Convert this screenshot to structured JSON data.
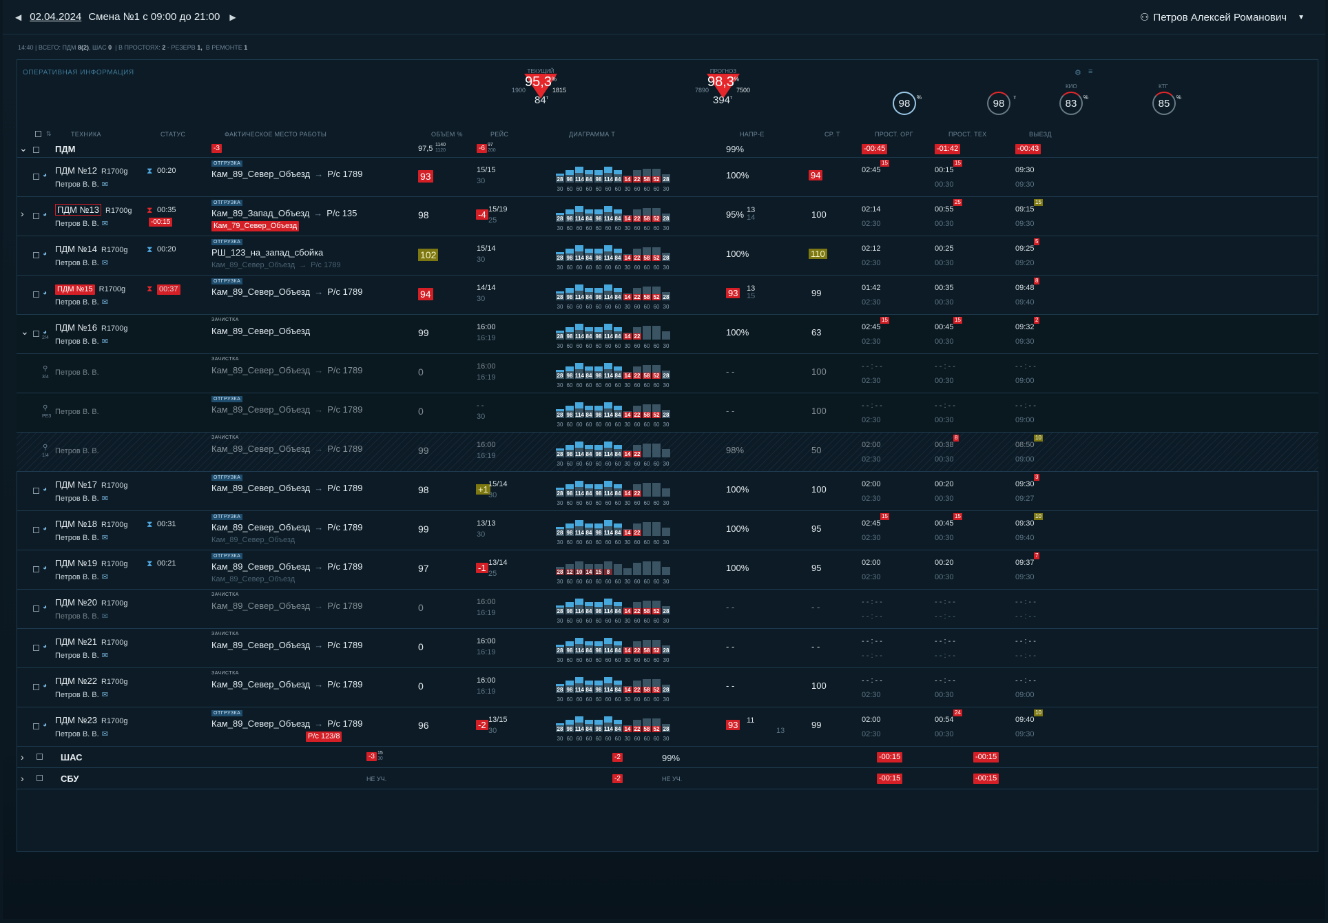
{
  "header": {
    "date": "02.04.2024",
    "shift": "Смена №1 с 09:00 до 21:00",
    "user": "Петров Алексей Романович"
  },
  "summary": {
    "time": "14:40",
    "total_label": "ВСЕГО: ПДМ",
    "pdm": "8(2)",
    "shas_label": ", ШАС",
    "shas": "0",
    "idle_label": "| В ПРОСТОЯХ:",
    "idle": "2",
    "reserve_label": "- РЕЗЕРВ",
    "reserve": "1,",
    "repair_label": "В РЕМОНТЕ",
    "repair": "1"
  },
  "panel": {
    "title": "ОПЕРАТИВНАЯ ИНФОРМАЦИЯ"
  },
  "kpis": {
    "current": {
      "label": "ТЕКУЩИЙ",
      "value": "95,3",
      "unit": "%",
      "left": "1900",
      "right": "1815",
      "bottom": "84",
      "bottom_unit": "т"
    },
    "forecast": {
      "label": "ПРОГНОЗ",
      "value": "98,3",
      "unit": "%",
      "left": "7890",
      "right": "7500",
      "bottom": "394",
      "bottom_unit": "т"
    },
    "circles": [
      {
        "value": "98",
        "unit": "%",
        "label": ""
      },
      {
        "value": "98",
        "unit": "т",
        "label": ""
      },
      {
        "value": "83",
        "unit": "%",
        "label": "КИО"
      },
      {
        "value": "85",
        "unit": "%",
        "label": "КТГ"
      }
    ]
  },
  "columns": [
    "ТЕХНИКА",
    "СТАТУС",
    "ФАКТИЧЕСКОЕ МЕСТО РАБОТЫ",
    "ОБЪЕМ %",
    "РЕЙС",
    "ДИАГРАММА Т",
    "НАПР-Е",
    "СР. Т",
    "ПРОСТ. ОРГ",
    "ПРОСТ. ТЕХ",
    "ВЫЕЗД"
  ],
  "group_pdm": {
    "name": "ПДМ",
    "place_badge": "-3",
    "volume": "97,5",
    "volume_top": "1140",
    "volume_bot": "1120",
    "trip_badge": "-6",
    "trip_top": "97",
    "trip_bot": "200",
    "napr": "99%",
    "prost_org": "-00:45",
    "prost_teh": "-01:42",
    "vyezd": "-00:43"
  },
  "rows": [
    {
      "name": "ПДМ №12",
      "model": "R1700g",
      "person": "Петров В. В.",
      "status_time": "00:20",
      "tag": "ОТГРУЗКА",
      "place": "Кам_89_Север_Объезд",
      "dest": "Р/с 1789",
      "volume": "93",
      "trip": "15/15",
      "trip2": "30",
      "napr": "100%",
      "srt": "94",
      "po": "02:45",
      "po2": "",
      "pt": "00:15",
      "pt2": "00:30",
      "vy": "09:30",
      "vy2": "09:30",
      "cpo": "15",
      "cpt": "15",
      "cvy": ""
    },
    {
      "name": "ПДМ №13",
      "model": "R1700g",
      "person": "Петров В. В.",
      "status_time": "00:35",
      "status_badge": "-00:15",
      "tag": "ОТГРУЗКА",
      "place": "Кам_89_Запад_Объезд",
      "dest": "Р/с 135",
      "place2": "Кам_79_Север_Объезд",
      "volume": "98",
      "trip_badge": "-4",
      "trip": "15/19",
      "trip2": "25",
      "napr": "95%",
      "napr_a": "13",
      "napr_b": "14",
      "srt": "100",
      "po": "02:14",
      "po2": "02:30",
      "pt": "00:55",
      "pt2": "00:30",
      "vy": "09:15",
      "vy2": "09:30",
      "cpt": "25",
      "cvy": "15"
    },
    {
      "name": "ПДМ №14",
      "model": "R1700g",
      "person": "Петров В. В.",
      "status_time": "00:20",
      "tag": "ОТГРУЗКА",
      "place": "РШ_123_на_запад_сбойка",
      "place_sub": "Кам_89_Север_Объезд",
      "dest_sub": "Р/с 1789",
      "volume": "102",
      "trip": "15/14",
      "trip2": "30",
      "napr": "100%",
      "srt": "110",
      "po": "02:12",
      "po2": "02:30",
      "pt": "00:25",
      "pt2": "00:30",
      "vy": "09:25",
      "vy2": "09:20",
      "cvy": "5"
    },
    {
      "name": "ПДМ №15",
      "model": "R1700g",
      "person": "Петров В. В.",
      "status_time": "00:37",
      "tag": "ОТГРУЗКА",
      "place": "Кам_89_Север_Объезд",
      "dest": "Р/с 1789",
      "volume": "94",
      "trip": "14/14",
      "trip2": "30",
      "napr": "93",
      "napr_a": "13",
      "napr_b": "15",
      "srt": "99",
      "po": "01:42",
      "po2": "02:30",
      "pt": "00:35",
      "pt2": "00:30",
      "vy": "09:48",
      "vy2": "09:40",
      "cvy": "8"
    },
    {
      "name": "ПДМ №16",
      "model": "R1700g",
      "person": "Петров В. В.",
      "tag": "ЗАЧИСТКА",
      "place": "Кам_89_Север_Объезд",
      "volume": "99",
      "trip": "16:00",
      "trip2": "16:19",
      "napr": "100%",
      "srt": "63",
      "po": "02:45",
      "po2": "02:30",
      "pt": "00:45",
      "pt2": "00:30",
      "vy": "09:32",
      "vy2": "09:30",
      "cpo": "15",
      "cpt": "15",
      "cvy": "2",
      "frac": "2/4"
    },
    {
      "person": "Петров В. В.",
      "tag": "ЗАЧИСТКА",
      "place": "Кам_89_Север_Объезд",
      "dest": "Р/с 1789",
      "volume": "0",
      "trip": "16:00",
      "trip2": "16:19",
      "napr": "- -",
      "srt": "100",
      "po": "- - : - -",
      "po2": "02:30",
      "pt": "- - : - -",
      "pt2": "00:30",
      "vy": "- - : - -",
      "vy2": "09:00",
      "frac": "3/4"
    },
    {
      "person": "Петров В. В.",
      "tag": "ОТГРУЗКА",
      "place": "Кам_89_Север_Объезд",
      "dest": "Р/с 1789",
      "volume": "0",
      "trip": "- -",
      "trip2": "30",
      "napr": "- -",
      "srt": "100",
      "po": "- - : - -",
      "po2": "02:30",
      "pt": "- - : - -",
      "pt2": "00:30",
      "vy": "- - : - -",
      "vy2": "09:00",
      "frac": "РЕЗ"
    },
    {
      "person": "Петров В. В.",
      "tag": "ЗАЧИСТКА",
      "place": "Кам_89_Север_Объезд",
      "dest": "Р/с 1789",
      "volume": "99",
      "trip": "16:00",
      "trip2": "16:19",
      "napr": "98%",
      "srt": "50",
      "po": "02:00",
      "po2": "02:30",
      "pt": "00:38",
      "pt2": "00:30",
      "vy": "08:50",
      "vy2": "09:00",
      "cpt": "8",
      "cvy": "10",
      "frac": "1/4"
    },
    {
      "name": "ПДМ №17",
      "model": "R1700g",
      "person": "Петров В. В.",
      "tag": "ОТГРУЗКА",
      "place": "Кам_89_Север_Объезд",
      "dest": "Р/с 1789",
      "volume": "98",
      "trip_badge": "+1",
      "trip": "15/14",
      "trip2": "30",
      "napr": "100%",
      "srt": "100",
      "po": "02:00",
      "po2": "02:30",
      "pt": "00:20",
      "pt2": "00:30",
      "vy": "09:30",
      "vy2": "09:27",
      "cvy": "3"
    },
    {
      "name": "ПДМ №18",
      "model": "R1700g",
      "person": "Петров В. В.",
      "status_time": "00:31",
      "tag": "ОТГРУЗКА",
      "place": "Кам_89_Север_Объезд",
      "dest": "Р/с 1789",
      "place_sub": "Кам_89_Север_Объезд",
      "volume": "99",
      "trip": "13/13",
      "trip2": "30",
      "napr": "100%",
      "srt": "95",
      "po": "02:45",
      "po2": "02:30",
      "pt": "00:45",
      "pt2": "00:30",
      "vy": "09:30",
      "vy2": "09:40",
      "cpo": "15",
      "cpt": "15",
      "cvy": "10"
    },
    {
      "name": "ПДМ №19",
      "model": "R1700g",
      "person": "Петров В. В.",
      "status_time": "00:21",
      "tag": "ОТГРУЗКА",
      "place": "Кам_89_Север_Объезд",
      "dest": "Р/с 1789",
      "place_sub": "Кам_89_Север_Объезд",
      "volume": "97",
      "trip_badge": "-1",
      "trip": "13/14",
      "trip2": "25",
      "napr": "100%",
      "srt": "95",
      "po": "02:00",
      "po2": "02:30",
      "pt": "00:20",
      "pt2": "00:30",
      "vy": "09:37",
      "vy2": "09:30",
      "cvy": "7"
    },
    {
      "name": "ПДМ №20",
      "model": "R1700g",
      "person": "Петров В. В.",
      "tag": "ЗАЧИСТКА",
      "place": "Кам_89_Север_Объезд",
      "dest": "Р/с 1789",
      "volume": "0",
      "trip": "16:00",
      "trip2": "16:19",
      "napr": "- -",
      "srt": "- -",
      "po": "- - : - -",
      "po2": "- - : - -",
      "pt": "- - : - -",
      "pt2": "- - : - -",
      "vy": "- - : - -",
      "vy2": "- - : - -"
    },
    {
      "name": "ПДМ №21",
      "model": "R1700g",
      "person": "Петров В. В.",
      "tag": "ЗАЧИСТКА",
      "place": "Кам_89_Север_Объезд",
      "dest": "Р/с 1789",
      "volume": "0",
      "trip": "16:00",
      "trip2": "16:19",
      "napr": "- -",
      "srt": "- -",
      "po": "- - : - -",
      "po2": "- - : - -",
      "pt": "- - : - -",
      "pt2": "- - : - -",
      "vy": "- - : - -",
      "vy2": "- - : - -"
    },
    {
      "name": "ПДМ №22",
      "model": "R1700g",
      "person": "Петров В. В.",
      "tag": "ЗАЧИСТКА",
      "place": "Кам_89_Север_Объезд",
      "dest": "Р/с 1789",
      "volume": "0",
      "trip": "16:00",
      "trip2": "16:19",
      "napr": "- -",
      "srt": "100",
      "po": "- - : - -",
      "po2": "02:30",
      "pt": "- - : - -",
      "pt2": "00:30",
      "vy": "- - : - -",
      "vy2": "09:00"
    },
    {
      "name": "ПДМ №23",
      "model": "R1700g",
      "person": "Петров В. В.",
      "tag": "ОТГРУЗКА",
      "place": "Кам_89_Север_Объезд",
      "dest": "Р/с 1789",
      "dest_badge": "Р/с 123/8",
      "volume": "96",
      "trip_badge": "-2",
      "trip": "13/15",
      "trip2": "30",
      "napr": "93",
      "napr_a": "11",
      "napr_extra": "13",
      "srt": "99",
      "po": "02:00",
      "po2": "02:30",
      "pt": "00:54",
      "pt2": "00:30",
      "vy": "09:40",
      "vy2": "09:30",
      "cpt": "24",
      "cvy": "10"
    }
  ],
  "diagram": {
    "full": [
      "28",
      "98",
      "114",
      "84",
      "98",
      "114",
      "84",
      "14",
      "22",
      "58",
      "52",
      "28"
    ],
    "axis": [
      "30",
      "60",
      "60",
      "60",
      "60",
      "60",
      "60",
      "30",
      "60",
      "60",
      "60",
      "30"
    ],
    "row19": [
      "28",
      "12",
      "10",
      "14",
      "15",
      "8"
    ]
  },
  "group_shas": {
    "name": "ШАС",
    "badge": "-3",
    "top": "15",
    "bot": "30",
    "trip_badge": "-2",
    "napr": "99%",
    "po": "-00:15",
    "pt": "-00:15"
  },
  "group_sbu": {
    "name": "СБУ",
    "nu": "НЕ УЧ.",
    "trip_badge": "-2",
    "nu2": "НЕ УЧ.",
    "po": "-00:15",
    "pt": "-00:15"
  },
  "colors": {
    "accent": "#47a8de",
    "alert": "#d41f26",
    "warn": "#7d7812",
    "bg": "#0c1b25"
  }
}
